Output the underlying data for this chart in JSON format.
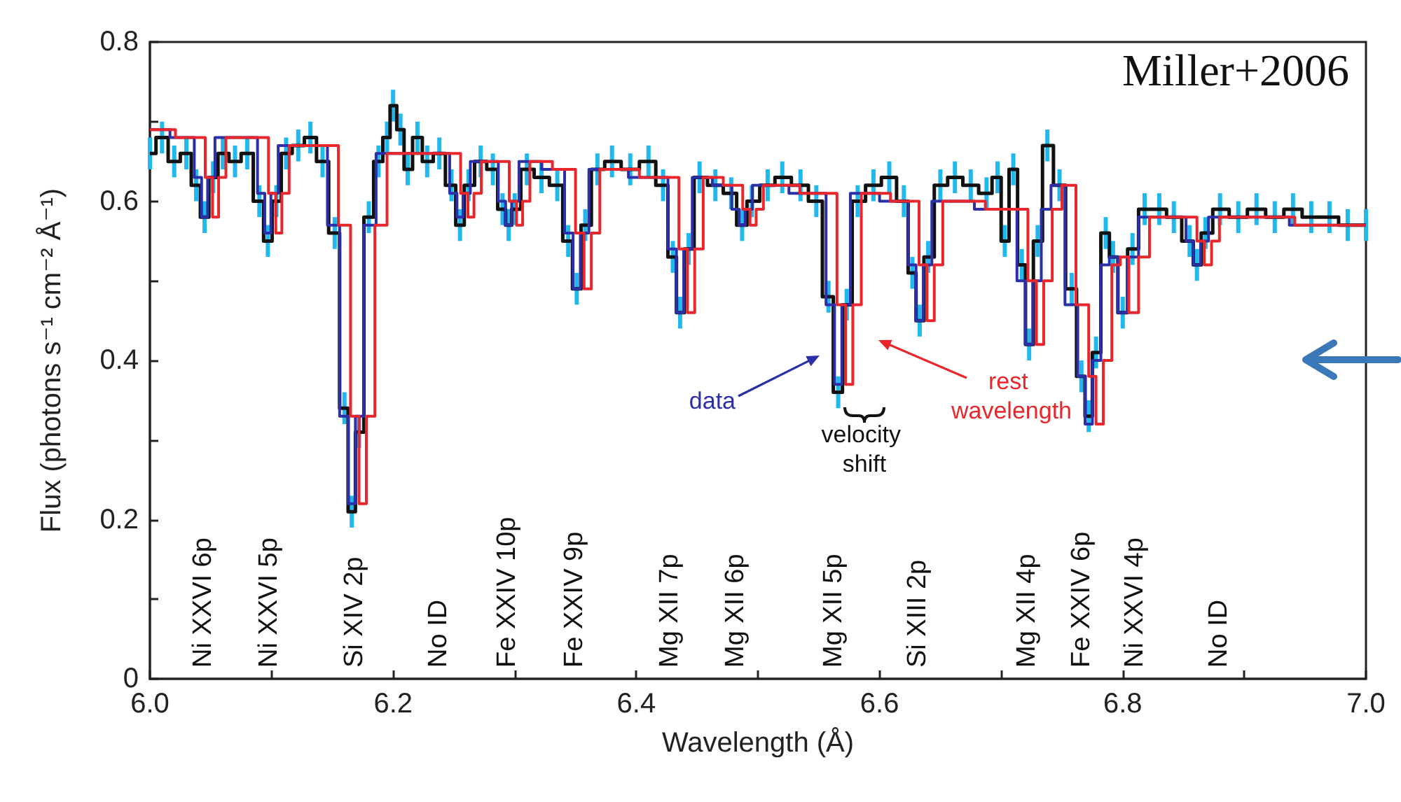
{
  "chart_data": {
    "type": "step",
    "xlabel": "Wavelength (Å)",
    "ylabel": "Flux (photons s⁻¹ cm⁻² Å⁻¹)",
    "xlim": [
      6,
      7
    ],
    "xticks": [
      {
        "value": 6,
        "label": "6.0"
      },
      {
        "value": 6.1,
        "label": null
      },
      {
        "value": 6.2,
        "label": "6.2"
      },
      {
        "value": 6.3,
        "label": null
      },
      {
        "value": 6.4,
        "label": "6.4"
      },
      {
        "value": 6.5,
        "label": null
      },
      {
        "value": 6.6,
        "label": "6.6"
      },
      {
        "value": 6.7,
        "label": null
      },
      {
        "value": 6.8,
        "label": "6.8"
      },
      {
        "value": 6.9,
        "label": null
      },
      {
        "value": 7,
        "label": "7.0"
      }
    ],
    "ylim": [
      0,
      0.8
    ],
    "yticks": [
      0,
      {
        "value": 0.1,
        "label": null
      },
      0.2,
      {
        "value": 0.3,
        "label": null
      },
      0.4,
      {
        "value": 0.5,
        "label": null
      },
      0.6,
      {
        "value": 0.7,
        "label": null
      },
      0.8
    ],
    "series": [
      {
        "color": "#111111",
        "x": [
          6.0,
          6.01,
          6.02,
          6.03,
          6.038,
          6.045,
          6.052,
          6.06,
          6.07,
          6.08,
          6.09,
          6.097,
          6.104,
          6.112,
          6.122,
          6.132,
          6.142,
          6.152,
          6.16,
          6.166,
          6.172,
          6.18,
          6.188,
          6.195,
          6.2,
          6.206,
          6.212,
          6.22,
          6.228,
          6.238,
          6.248,
          6.255,
          6.262,
          6.272,
          6.282,
          6.29,
          6.295,
          6.3,
          6.31,
          6.322,
          6.335,
          6.344,
          6.351,
          6.358,
          6.368,
          6.38,
          6.395,
          6.41,
          6.422,
          6.43,
          6.436,
          6.443,
          6.452,
          6.465,
          6.478,
          6.487,
          6.495,
          6.508,
          6.52,
          6.535,
          6.548,
          6.558,
          6.566,
          6.573,
          6.582,
          6.595,
          6.608,
          6.62,
          6.627,
          6.633,
          6.64,
          6.65,
          6.662,
          6.675,
          6.688,
          6.697,
          6.703,
          6.71,
          6.717,
          6.723,
          6.73,
          6.738,
          6.748,
          6.758,
          6.766,
          6.772,
          6.778,
          6.786,
          6.792,
          6.8,
          6.808,
          6.818,
          6.83,
          6.842,
          6.855,
          6.861,
          6.868,
          6.88,
          6.895,
          6.91,
          6.925,
          6.94,
          6.955,
          6.97,
          6.985,
          7.0
        ],
        "values": [
          0.66,
          0.68,
          0.65,
          0.66,
          0.62,
          0.58,
          0.63,
          0.66,
          0.65,
          0.66,
          0.6,
          0.55,
          0.6,
          0.66,
          0.67,
          0.68,
          0.65,
          0.56,
          0.34,
          0.21,
          0.31,
          0.58,
          0.65,
          0.68,
          0.72,
          0.69,
          0.64,
          0.68,
          0.65,
          0.66,
          0.62,
          0.57,
          0.62,
          0.65,
          0.64,
          0.59,
          0.57,
          0.59,
          0.64,
          0.63,
          0.62,
          0.55,
          0.49,
          0.57,
          0.64,
          0.65,
          0.64,
          0.65,
          0.62,
          0.53,
          0.46,
          0.54,
          0.63,
          0.62,
          0.61,
          0.57,
          0.6,
          0.62,
          0.63,
          0.62,
          0.6,
          0.48,
          0.36,
          0.47,
          0.6,
          0.62,
          0.63,
          0.6,
          0.51,
          0.45,
          0.53,
          0.62,
          0.63,
          0.62,
          0.61,
          0.63,
          0.55,
          0.64,
          0.52,
          0.42,
          0.55,
          0.67,
          0.62,
          0.49,
          0.38,
          0.33,
          0.41,
          0.56,
          0.53,
          0.46,
          0.54,
          0.59,
          0.59,
          0.58,
          0.55,
          0.52,
          0.56,
          0.59,
          0.58,
          0.59,
          0.58,
          0.59,
          0.58,
          0.58,
          0.57,
          0.57
        ],
        "errors": [
          0.02,
          0.02,
          0.02,
          0.02,
          0.02,
          0.02,
          0.02,
          0.02,
          0.02,
          0.02,
          0.02,
          0.02,
          0.02,
          0.02,
          0.02,
          0.02,
          0.02,
          0.02,
          0.02,
          0.02,
          0.02,
          0.02,
          0.02,
          0.02,
          0.02,
          0.02,
          0.02,
          0.02,
          0.02,
          0.02,
          0.02,
          0.02,
          0.02,
          0.02,
          0.02,
          0.02,
          0.02,
          0.02,
          0.02,
          0.02,
          0.02,
          0.02,
          0.02,
          0.02,
          0.02,
          0.02,
          0.02,
          0.02,
          0.02,
          0.02,
          0.02,
          0.02,
          0.02,
          0.02,
          0.02,
          0.02,
          0.02,
          0.02,
          0.02,
          0.02,
          0.02,
          0.02,
          0.02,
          0.02,
          0.02,
          0.02,
          0.02,
          0.02,
          0.02,
          0.02,
          0.02,
          0.02,
          0.02,
          0.02,
          0.02,
          0.02,
          0.02,
          0.02,
          0.02,
          0.02,
          0.02,
          0.02,
          0.02,
          0.02,
          0.02,
          0.02,
          0.02,
          0.02,
          0.02,
          0.02,
          0.02,
          0.02,
          0.02,
          0.02,
          0.02,
          0.02,
          0.02,
          0.02,
          0.02,
          0.02,
          0.02,
          0.02,
          0.02,
          0.02,
          0.02,
          0.02
        ]
      },
      {
        "color": "#2b2fa8",
        "x": [
          6.0,
          6.033,
          6.04,
          6.045,
          6.05,
          6.057,
          6.085,
          6.092,
          6.097,
          6.102,
          6.109,
          6.14,
          6.152,
          6.16,
          6.166,
          6.172,
          6.18,
          6.192,
          6.243,
          6.25,
          6.255,
          6.26,
          6.267,
          6.283,
          6.29,
          6.295,
          6.3,
          6.307,
          6.337,
          6.345,
          6.351,
          6.357,
          6.365,
          6.422,
          6.43,
          6.436,
          6.442,
          6.45,
          6.475,
          6.482,
          6.487,
          6.492,
          6.499,
          6.552,
          6.56,
          6.566,
          6.572,
          6.58,
          6.62,
          6.627,
          6.633,
          6.639,
          6.647,
          6.709,
          6.717,
          6.723,
          6.729,
          6.737,
          6.745,
          6.76,
          6.766,
          6.772,
          6.778,
          6.786,
          6.792,
          6.8,
          6.808,
          6.818,
          6.849,
          6.855,
          6.861,
          6.867,
          6.874,
          7.0
        ],
        "values": [
          0.69,
          0.68,
          0.63,
          0.58,
          0.63,
          0.68,
          0.68,
          0.61,
          0.56,
          0.61,
          0.67,
          0.67,
          0.57,
          0.33,
          0.22,
          0.33,
          0.57,
          0.66,
          0.66,
          0.61,
          0.58,
          0.61,
          0.65,
          0.65,
          0.6,
          0.57,
          0.6,
          0.65,
          0.64,
          0.56,
          0.49,
          0.56,
          0.64,
          0.63,
          0.54,
          0.46,
          0.54,
          0.63,
          0.62,
          0.59,
          0.57,
          0.59,
          0.62,
          0.61,
          0.47,
          0.37,
          0.47,
          0.61,
          0.6,
          0.52,
          0.45,
          0.52,
          0.6,
          0.59,
          0.5,
          0.42,
          0.5,
          0.59,
          0.62,
          0.47,
          0.38,
          0.32,
          0.4,
          0.52,
          0.53,
          0.46,
          0.53,
          0.58,
          0.58,
          0.55,
          0.52,
          0.55,
          0.58,
          0.57
        ]
      },
      {
        "color": "#e8262b",
        "x": [
          6.0,
          6.042,
          6.049,
          6.054,
          6.059,
          6.066,
          6.094,
          6.101,
          6.106,
          6.111,
          6.118,
          6.149,
          6.161,
          6.169,
          6.175,
          6.181,
          6.189,
          6.201,
          6.252,
          6.259,
          6.264,
          6.269,
          6.276,
          6.292,
          6.299,
          6.304,
          6.309,
          6.316,
          6.346,
          6.354,
          6.36,
          6.366,
          6.374,
          6.431,
          6.439,
          6.445,
          6.451,
          6.459,
          6.484,
          6.491,
          6.496,
          6.501,
          6.508,
          6.561,
          6.569,
          6.575,
          6.581,
          6.589,
          6.629,
          6.636,
          6.642,
          6.648,
          6.656,
          6.718,
          6.726,
          6.732,
          6.738,
          6.746,
          6.754,
          6.769,
          6.775,
          6.781,
          6.787,
          6.795,
          6.801,
          6.809,
          6.817,
          6.827,
          6.858,
          6.864,
          6.87,
          6.876,
          6.883,
          7.0
        ],
        "values": [
          0.69,
          0.68,
          0.63,
          0.58,
          0.63,
          0.68,
          0.68,
          0.61,
          0.56,
          0.61,
          0.67,
          0.67,
          0.57,
          0.33,
          0.22,
          0.33,
          0.57,
          0.66,
          0.66,
          0.61,
          0.58,
          0.61,
          0.65,
          0.65,
          0.6,
          0.57,
          0.6,
          0.65,
          0.64,
          0.56,
          0.49,
          0.56,
          0.64,
          0.63,
          0.54,
          0.46,
          0.54,
          0.63,
          0.62,
          0.59,
          0.57,
          0.59,
          0.62,
          0.61,
          0.47,
          0.37,
          0.47,
          0.61,
          0.6,
          0.52,
          0.45,
          0.52,
          0.6,
          0.59,
          0.5,
          0.42,
          0.5,
          0.59,
          0.62,
          0.47,
          0.38,
          0.32,
          0.4,
          0.52,
          0.53,
          0.46,
          0.53,
          0.58,
          0.58,
          0.55,
          0.52,
          0.55,
          0.58,
          0.57
        ]
      }
    ],
    "annotations": [
      "Ni XXVI 6p",
      "Ni XXVI 5p",
      "Si XIV 2p",
      "No ID",
      "Fe XXIV 10p",
      "Fe XXIV 9p",
      "Mg XII 7p",
      "Mg XII 6p",
      "Mg XII 5p",
      "Si XIII 2p",
      "Mg XII 4p",
      "Fe XXIV 6p",
      "Ni XXVI 4p",
      "No ID",
      "data",
      "rest wavelength",
      "velocity shift",
      "Miller+2006"
    ]
  }
}
